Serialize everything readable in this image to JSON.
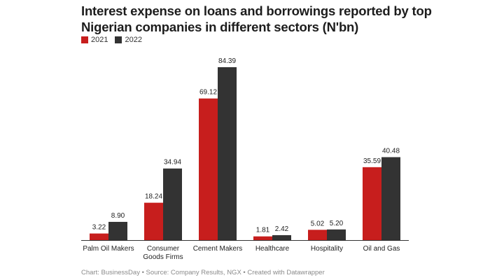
{
  "chart_data": {
    "type": "bar",
    "title": "Interest expense on loans and borrowings reported by top Nigerian companies in different sectors (N'bn)",
    "categories": [
      [
        "Palm Oil Makers"
      ],
      [
        "Consumer",
        "Goods Firms"
      ],
      [
        "Cement Makers"
      ],
      [
        "Healthcare"
      ],
      [
        "Hospitality"
      ],
      [
        "Oil and Gas"
      ]
    ],
    "series": [
      {
        "name": "2021",
        "color": "#c71e1d",
        "values": [
          3.22,
          18.24,
          69.12,
          1.81,
          5.02,
          35.59
        ],
        "labels": [
          "3.22",
          "18.24",
          "69.12",
          "1.81",
          "5.02",
          "35.59"
        ]
      },
      {
        "name": "2022",
        "color": "#333333",
        "values": [
          8.9,
          34.94,
          84.39,
          2.42,
          5.2,
          40.48
        ],
        "labels": [
          "8.90",
          "34.94",
          "84.39",
          "2.42",
          "5.20",
          "40.48"
        ]
      }
    ],
    "ylim": [
      0,
      84.39
    ],
    "xlabel": "",
    "ylabel": "",
    "legend_position": "top-left"
  },
  "footer": "Chart: BusinessDay • Source: Company Results, NGX • Created with Datawrapper"
}
